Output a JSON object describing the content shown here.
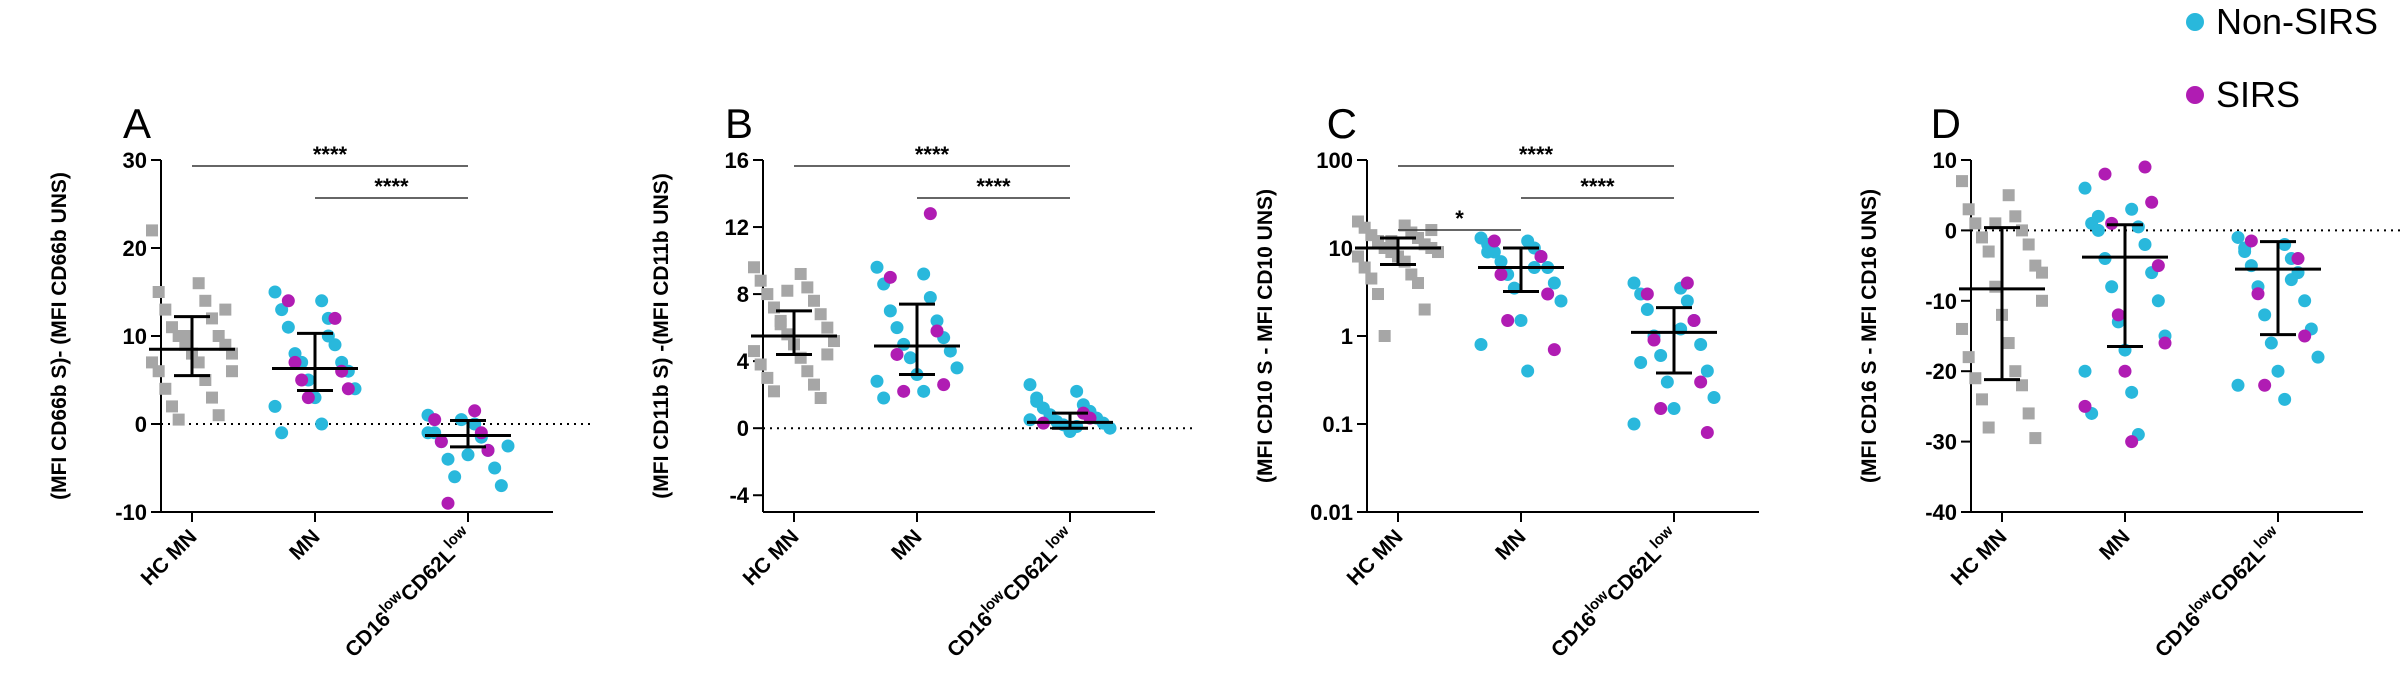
{
  "legend": {
    "nonsirs": "Non-SIRS",
    "sirs": "SIRS"
  },
  "colors": {
    "hc": "#a6a6a6",
    "nonsirs": "#29b8dc",
    "sirs": "#b01cb3"
  },
  "chart_data": [
    {
      "type": "dotplot",
      "panel": "A",
      "ylabel": "(MFI CD66b S)- (MFI CD66b UNS)",
      "log": false,
      "ref_line": 0,
      "ylim": [
        -10,
        30
      ],
      "yticks": [
        -10,
        0,
        10,
        20,
        30
      ],
      "categories": [
        "HC MN",
        "MN",
        [
          "CD16",
          "low",
          "CD62L",
          "low"
        ]
      ],
      "groups": [
        {
          "hc": [
            22,
            16,
            15,
            14,
            13,
            12,
            11,
            10,
            10,
            9,
            9,
            8,
            8,
            7,
            7,
            6,
            5,
            4,
            3,
            2,
            1,
            0.5,
            13,
            10,
            6
          ]
        },
        {
          "nonsirs": [
            15,
            14,
            13,
            12,
            11,
            9,
            8,
            7,
            7,
            6,
            5,
            4,
            3,
            2,
            0,
            -1,
            10
          ],
          "sirs": [
            14,
            12,
            7,
            6,
            5,
            4,
            3
          ]
        },
        {
          "nonsirs": [
            1,
            0,
            -1,
            -1.5,
            -2,
            -3,
            -4,
            -5,
            -6,
            -7,
            0.5,
            -2.5,
            -3.5,
            -1
          ],
          "sirs": [
            1.5,
            0.5,
            -1,
            -2,
            -3,
            -9
          ]
        }
      ],
      "summary": [
        {
          "median": 8.5,
          "q1": 5.5,
          "q3": 12.2
        },
        {
          "median": 6.3,
          "q1": 3.8,
          "q3": 10.3
        },
        {
          "median": -1.3,
          "q1": -2.6,
          "q3": 0.4
        }
      ],
      "brackets": [
        {
          "from": 0,
          "to": 2,
          "label": "****"
        },
        {
          "from": 1,
          "to": 2,
          "label": "****"
        }
      ]
    },
    {
      "type": "dotplot",
      "panel": "B",
      "ylabel": "(MFI CD11b S) -(MFI CD11b UNS)",
      "log": false,
      "ref_line": 0,
      "ylim": [
        -5,
        16
      ],
      "yticks": [
        -4,
        0,
        4,
        8,
        12,
        16
      ],
      "categories": [
        "HC MN",
        "MN",
        [
          "CD16",
          "low",
          "CD62L",
          "low"
        ]
      ],
      "groups": [
        {
          "hc": [
            9.6,
            9.2,
            8.8,
            8.4,
            8,
            7.6,
            7.2,
            6.8,
            6.4,
            6,
            5.6,
            5.2,
            5,
            4.6,
            4.2,
            3.8,
            3.4,
            3,
            2.6,
            2.2,
            1.8,
            6.2,
            4.4,
            8.2
          ]
        },
        {
          "nonsirs": [
            9.6,
            9.2,
            8.6,
            7.8,
            7,
            6.4,
            6,
            5.4,
            5,
            4.6,
            4.2,
            3.6,
            3.2,
            2.8,
            2.2,
            1.8
          ],
          "sirs": [
            12.8,
            9,
            5.8,
            4.4,
            2.6,
            2.2
          ]
        },
        {
          "nonsirs": [
            2.6,
            2.2,
            1.8,
            1.4,
            1.2,
            1,
            0.8,
            0.6,
            0.4,
            0.3,
            0.2,
            0,
            -0.2,
            0.5,
            0.1,
            1.6
          ],
          "sirs": [
            0.9,
            0.3,
            0.6
          ]
        }
      ],
      "summary": [
        {
          "median": 5.5,
          "q1": 4.4,
          "q3": 7.0
        },
        {
          "median": 4.9,
          "q1": 3.2,
          "q3": 7.4
        },
        {
          "median": 0.35,
          "q1": 0,
          "q3": 0.9
        }
      ],
      "brackets": [
        {
          "from": 0,
          "to": 2,
          "label": "****"
        },
        {
          "from": 1,
          "to": 2,
          "label": "****"
        }
      ]
    },
    {
      "type": "dotplot",
      "panel": "C",
      "ylabel": "(MFI CD10 S - MFI CD10 UNS)",
      "log": true,
      "ylim": [
        0.01,
        100
      ],
      "yticks": [
        0.01,
        0.1,
        1,
        10,
        100
      ],
      "categories": [
        "HC MN",
        "MN",
        [
          "CD16",
          "low",
          "CD62L",
          "low"
        ]
      ],
      "groups": [
        {
          "hc": [
            20,
            18,
            17,
            15,
            14,
            13,
            12,
            11,
            10,
            10,
            9,
            9,
            8,
            8,
            7,
            6,
            5,
            4.5,
            4,
            3,
            2,
            1,
            16,
            12
          ]
        },
        {
          "nonsirs": [
            13,
            12,
            11,
            10,
            9,
            8,
            7,
            6,
            5,
            4,
            3.5,
            2.5,
            1.5,
            0.8,
            0.4,
            9,
            6
          ],
          "sirs": [
            12,
            8,
            5,
            3,
            1.5,
            0.7
          ]
        },
        {
          "nonsirs": [
            4,
            3.5,
            3,
            2.5,
            2,
            1.5,
            1,
            0.8,
            0.6,
            0.4,
            0.3,
            0.2,
            0.15,
            0.1,
            1.2,
            0.5
          ],
          "sirs": [
            4,
            3,
            1.5,
            0.9,
            0.3,
            0.15,
            0.08
          ]
        }
      ],
      "summary": [
        {
          "median": 10,
          "q1": 6.5,
          "q3": 13
        },
        {
          "median": 6,
          "q1": 3.2,
          "q3": 10
        },
        {
          "median": 1.1,
          "q1": 0.38,
          "q3": 2.1
        }
      ],
      "brackets": [
        {
          "from": 0,
          "to": 2,
          "label": "****"
        },
        {
          "from": 1,
          "to": 2,
          "label": "****"
        },
        {
          "from": 0,
          "to": 1,
          "label": "*"
        }
      ]
    },
    {
      "type": "dotplot",
      "panel": "D",
      "ylabel": "(MFI CD16 S - MFI CD16 UNS)",
      "log": false,
      "ref_line": 0,
      "ylim": [
        -40,
        10
      ],
      "yticks": [
        -40,
        -30,
        -20,
        -10,
        0,
        10
      ],
      "categories": [
        "HC MN",
        "MN",
        [
          "CD16",
          "low",
          "CD62L",
          "low"
        ]
      ],
      "groups": [
        {
          "hc": [
            7,
            5,
            3,
            2,
            1,
            0,
            -1,
            -2,
            -3,
            -5,
            -8,
            -10,
            -12,
            -14,
            -16,
            -18,
            -20,
            -21,
            -22,
            -24,
            -26,
            -28,
            -29.5,
            1,
            -6
          ]
        },
        {
          "nonsirs": [
            6,
            3,
            1,
            0.5,
            0,
            -2,
            -4,
            -6,
            -8,
            -10,
            -13,
            -15,
            -17,
            -20,
            -23,
            -26,
            -29,
            2
          ],
          "sirs": [
            9,
            8,
            4,
            1,
            -5,
            -12,
            -16,
            -20,
            -25,
            -30
          ]
        },
        {
          "nonsirs": [
            -1,
            -2,
            -3,
            -4,
            -5,
            -6,
            -8,
            -10,
            -12,
            -14,
            -16,
            -18,
            -20,
            -22,
            -24,
            -2.5,
            -7
          ],
          "sirs": [
            -1.5,
            -4,
            -9,
            -15,
            -22
          ]
        }
      ],
      "summary": [
        {
          "median": -8.3,
          "q1": -21.2,
          "q3": 0.4
        },
        {
          "median": -3.8,
          "q1": -16.5,
          "q3": 0.8
        },
        {
          "median": -5.5,
          "q1": -14.8,
          "q3": -1.6
        }
      ],
      "brackets": []
    }
  ]
}
